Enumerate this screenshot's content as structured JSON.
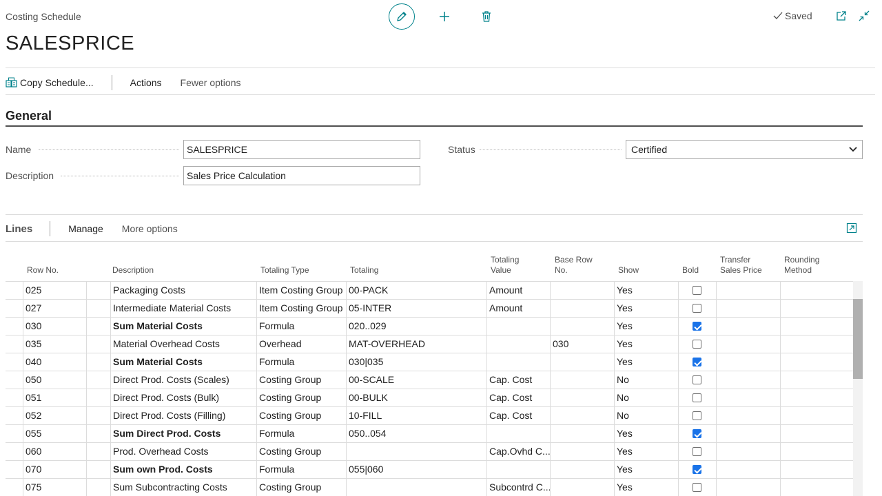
{
  "header": {
    "caption": "Costing Schedule",
    "title": "SALESPRICE",
    "saved_label": "Saved"
  },
  "actions": {
    "copy_schedule": "Copy Schedule...",
    "actions": "Actions",
    "fewer_options": "Fewer options"
  },
  "general": {
    "title": "General",
    "name_label": "Name",
    "name_value": "SALESPRICE",
    "description_label": "Description",
    "description_value": "Sales Price Calculation",
    "status_label": "Status",
    "status_value": "Certified"
  },
  "lines": {
    "title": "Lines",
    "manage": "Manage",
    "more_options": "More options",
    "columns": {
      "row_no": "Row No.",
      "description": "Description",
      "totaling_type": "Totaling Type",
      "totaling": "Totaling",
      "totaling_value_1": "Totaling",
      "totaling_value_2": "Value",
      "base_row_1": "Base Row",
      "base_row_2": "No.",
      "show": "Show",
      "bold": "Bold",
      "transfer_1": "Transfer",
      "transfer_2": "Sales Price",
      "rounding_1": "Rounding",
      "rounding_2": "Method"
    },
    "rows": [
      {
        "row_no": "025",
        "description": "Packaging Costs",
        "totaling_type": "Item Costing Group",
        "totaling": "00-PACK",
        "totaling_value": "Amount",
        "base_row": "",
        "show": "Yes",
        "bold": false
      },
      {
        "row_no": "027",
        "description": "Intermediate Material Costs",
        "totaling_type": "Item Costing Group",
        "totaling": "05-INTER",
        "totaling_value": "Amount",
        "base_row": "",
        "show": "Yes",
        "bold": false
      },
      {
        "row_no": "030",
        "description": "Sum Material Costs",
        "totaling_type": "Formula",
        "totaling": "020..029",
        "totaling_value": "",
        "base_row": "",
        "show": "Yes",
        "bold": true
      },
      {
        "row_no": "035",
        "description": "Material Overhead Costs",
        "totaling_type": "Overhead",
        "totaling": "MAT-OVERHEAD",
        "totaling_value": "",
        "base_row": "030",
        "show": "Yes",
        "bold": false
      },
      {
        "row_no": "040",
        "description": "Sum Material Costs",
        "totaling_type": "Formula",
        "totaling": "030|035",
        "totaling_value": "",
        "base_row": "",
        "show": "Yes",
        "bold": true
      },
      {
        "row_no": "050",
        "description": "Direct Prod. Costs (Scales)",
        "totaling_type": "Costing Group",
        "totaling": "00-SCALE",
        "totaling_value": "Cap. Cost",
        "base_row": "",
        "show": "No",
        "bold": false
      },
      {
        "row_no": "051",
        "description": "Direct Prod. Costs (Bulk)",
        "totaling_type": "Costing Group",
        "totaling": "00-BULK",
        "totaling_value": "Cap. Cost",
        "base_row": "",
        "show": "No",
        "bold": false
      },
      {
        "row_no": "052",
        "description": "Direct Prod. Costs (Filling)",
        "totaling_type": "Costing Group",
        "totaling": "10-FILL",
        "totaling_value": "Cap. Cost",
        "base_row": "",
        "show": "No",
        "bold": false
      },
      {
        "row_no": "055",
        "description": "Sum Direct Prod. Costs",
        "totaling_type": "Formula",
        "totaling": "050..054",
        "totaling_value": "",
        "base_row": "",
        "show": "Yes",
        "bold": true
      },
      {
        "row_no": "060",
        "description": "Prod. Overhead Costs",
        "totaling_type": "Costing Group",
        "totaling": "",
        "totaling_value": "Cap.Ovhd C...",
        "base_row": "",
        "show": "Yes",
        "bold": false
      },
      {
        "row_no": "070",
        "description": "Sum own Prod. Costs",
        "totaling_type": "Formula",
        "totaling": "055|060",
        "totaling_value": "",
        "base_row": "",
        "show": "Yes",
        "bold": true
      },
      {
        "row_no": "075",
        "description": "Sum Subcontracting Costs",
        "totaling_type": "Costing Group",
        "totaling": "",
        "totaling_value": "Subcontrd C...",
        "base_row": "",
        "show": "Yes",
        "bold": false
      }
    ]
  },
  "colors": {
    "accent": "#00828b",
    "checkbox": "#1a73e8"
  },
  "icons": [
    "edit-icon",
    "add-icon",
    "delete-icon",
    "checkmark-icon",
    "open-new-window-icon",
    "collapse-icon",
    "copy-schedule-icon",
    "expand-icon",
    "chevron-down-icon"
  ]
}
